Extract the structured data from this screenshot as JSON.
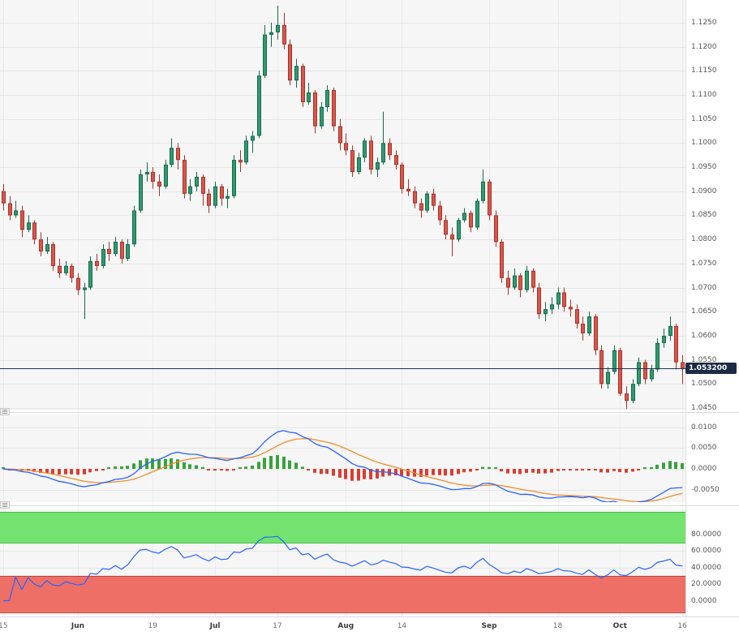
{
  "style": {
    "bg": "#ffffff",
    "plot_bg": "#f6f6f6",
    "grid": "#e6e6e6",
    "vgrid": "rgba(0,0,0,0.045)",
    "separator": "#d9d9d9",
    "axis_line": "#e0e0e0",
    "candle_up": "#2e9b70",
    "candle_up_border": "#17694a",
    "candle_down": "#d8564b",
    "candle_down_border": "#a83228",
    "price_line": "#22314f",
    "price_tag_bg": "#1c2b45",
    "price_tag_text": "#ffffff",
    "macd_line": "#2962ff",
    "macd_signal": "#ef8d2a",
    "hist_up": "#39a13c",
    "hist_down": "#dd3b30",
    "osc_line": "#2962ff",
    "band_overbought": "#73e26f",
    "band_overbought_border": "#44bf44",
    "band_oversold": "#ee6f66",
    "band_oversold_border": "#b8453c",
    "axis_text": "#555555"
  },
  "chart_data": {
    "type": "candlestick_multi_panel",
    "x_ticks": [
      {
        "index": 0,
        "label": "15",
        "bold": false
      },
      {
        "index": 12,
        "label": "Jun",
        "bold": true
      },
      {
        "index": 24,
        "label": "19",
        "bold": false
      },
      {
        "index": 34,
        "label": "Jul",
        "bold": true
      },
      {
        "index": 44,
        "label": "17",
        "bold": false
      },
      {
        "index": 55,
        "label": "Aug",
        "bold": true
      },
      {
        "index": 64,
        "label": "14",
        "bold": false
      },
      {
        "index": 78,
        "label": "Sep",
        "bold": true
      },
      {
        "index": 89,
        "label": "18",
        "bold": false
      },
      {
        "index": 99,
        "label": "Oct",
        "bold": true
      },
      {
        "index": 109,
        "label": "16",
        "bold": false
      }
    ],
    "panels": [
      {
        "name": "price",
        "type": "candlestick",
        "y_range": [
          1.0445,
          1.1297
        ],
        "y_tick_labels": [
          "1.1250",
          "1.1200",
          "1.1150",
          "1.1100",
          "1.1050",
          "1.1000",
          "1.0950",
          "1.0900",
          "1.0850",
          "1.0800",
          "1.0750",
          "1.0700",
          "1.0650",
          "1.0600",
          "1.0550",
          "1.0500",
          "1.0450"
        ],
        "last_price": 1.0532,
        "last_price_label": "1.053200",
        "candles": [
          [
            1.09,
            1.0915,
            1.086,
            1.0875
          ],
          [
            1.0875,
            1.089,
            1.084,
            1.085
          ],
          [
            1.085,
            1.088,
            1.0845,
            1.086
          ],
          [
            1.086,
            1.087,
            1.0805,
            1.082
          ],
          [
            1.082,
            1.085,
            1.0815,
            1.0835
          ],
          [
            1.0835,
            1.084,
            1.079,
            1.08
          ],
          [
            1.08,
            1.0815,
            1.0765,
            1.0775
          ],
          [
            1.0775,
            1.0805,
            1.077,
            1.079
          ],
          [
            1.079,
            1.0795,
            1.0735,
            1.0745
          ],
          [
            1.0745,
            1.076,
            1.072,
            1.073
          ],
          [
            1.073,
            1.0755,
            1.0725,
            1.0745
          ],
          [
            1.0745,
            1.075,
            1.071,
            1.072
          ],
          [
            1.072,
            1.073,
            1.0685,
            1.0695
          ],
          [
            1.0695,
            1.071,
            1.0635,
            1.07
          ],
          [
            1.07,
            1.0765,
            1.0695,
            1.0755
          ],
          [
            1.0755,
            1.077,
            1.0735,
            1.0745
          ],
          [
            1.0745,
            1.079,
            1.074,
            1.078
          ],
          [
            1.078,
            1.0795,
            1.0755,
            1.077
          ],
          [
            1.077,
            1.0805,
            1.0765,
            1.0795
          ],
          [
            1.0795,
            1.08,
            1.075,
            1.076
          ],
          [
            1.076,
            1.08,
            1.0755,
            1.079
          ],
          [
            1.079,
            1.087,
            1.0785,
            1.086
          ],
          [
            1.086,
            1.0945,
            1.0855,
            1.0935
          ],
          [
            1.0935,
            1.096,
            1.092,
            1.094
          ],
          [
            1.094,
            1.095,
            1.0905,
            1.092
          ],
          [
            1.092,
            1.0935,
            1.089,
            1.091
          ],
          [
            1.091,
            1.0965,
            1.0905,
            1.0955
          ],
          [
            1.0955,
            1.101,
            1.095,
            1.099
          ],
          [
            1.099,
            1.1,
            1.0945,
            1.0965
          ],
          [
            1.0965,
            1.0975,
            1.0885,
            1.0895
          ],
          [
            1.0895,
            1.0925,
            1.088,
            1.091
          ],
          [
            1.091,
            1.094,
            1.09,
            1.093
          ],
          [
            1.093,
            1.0935,
            1.087,
            1.0895
          ],
          [
            1.0895,
            1.0905,
            1.0855,
            1.087
          ],
          [
            1.087,
            1.092,
            1.0865,
            1.091
          ],
          [
            1.091,
            1.0915,
            1.087,
            1.0885
          ],
          [
            1.0885,
            1.0905,
            1.0865,
            1.089
          ],
          [
            1.089,
            1.0975,
            1.0885,
            1.0965
          ],
          [
            1.0965,
            1.0985,
            1.094,
            1.096
          ],
          [
            1.096,
            1.1015,
            1.0955,
            1.1005
          ],
          [
            1.1005,
            1.1025,
            1.098,
            1.1015
          ],
          [
            1.1015,
            1.115,
            1.101,
            1.114
          ],
          [
            1.114,
            1.1245,
            1.1135,
            1.1225
          ],
          [
            1.1225,
            1.125,
            1.12,
            1.123
          ],
          [
            1.123,
            1.1285,
            1.1215,
            1.1245
          ],
          [
            1.1245,
            1.127,
            1.1195,
            1.1205
          ],
          [
            1.1205,
            1.1215,
            1.112,
            1.113
          ],
          [
            1.113,
            1.1175,
            1.1115,
            1.116
          ],
          [
            1.116,
            1.1165,
            1.1075,
            1.1085
          ],
          [
            1.1085,
            1.1125,
            1.108,
            1.1105
          ],
          [
            1.1105,
            1.111,
            1.102,
            1.1035
          ],
          [
            1.1035,
            1.1085,
            1.103,
            1.1075
          ],
          [
            1.1075,
            1.112,
            1.1065,
            1.111
          ],
          [
            1.111,
            1.1115,
            1.1025,
            1.1035
          ],
          [
            1.1035,
            1.105,
            1.0985,
            1.1
          ],
          [
            1.1,
            1.102,
            1.0975,
            1.0985
          ],
          [
            1.0985,
            1.0995,
            1.093,
            1.094
          ],
          [
            1.094,
            1.098,
            1.0935,
            1.097
          ],
          [
            1.097,
            1.101,
            1.096,
            1.1005
          ],
          [
            1.1005,
            1.1015,
            1.0935,
            1.0945
          ],
          [
            1.0945,
            1.097,
            1.093,
            1.096
          ],
          [
            1.096,
            1.1065,
            1.0955,
            1.1
          ],
          [
            1.1,
            1.101,
            1.0965,
            1.0975
          ],
          [
            1.0975,
            1.0985,
            1.0945,
            1.0955
          ],
          [
            1.0955,
            1.096,
            1.0895,
            1.0905
          ],
          [
            1.0905,
            1.0925,
            1.089,
            1.09
          ],
          [
            1.09,
            1.091,
            1.0865,
            1.0875
          ],
          [
            1.0875,
            1.0885,
            1.0845,
            1.086
          ],
          [
            1.086,
            1.09,
            1.0855,
            1.0895
          ],
          [
            1.0895,
            1.0905,
            1.086,
            1.087
          ],
          [
            1.087,
            1.088,
            1.083,
            1.084
          ],
          [
            1.084,
            1.085,
            1.08,
            1.081
          ],
          [
            1.081,
            1.0825,
            1.0765,
            1.08
          ],
          [
            1.08,
            1.0845,
            1.0795,
            1.084
          ],
          [
            1.084,
            1.0865,
            1.0835,
            1.0855
          ],
          [
            1.0855,
            1.086,
            1.0815,
            1.0825
          ],
          [
            1.0825,
            1.0885,
            1.082,
            1.088
          ],
          [
            1.088,
            1.0945,
            1.0875,
            1.092
          ],
          [
            1.092,
            1.0925,
            1.084,
            1.085
          ],
          [
            1.085,
            1.086,
            1.0785,
            1.0795
          ],
          [
            1.0795,
            1.08,
            1.071,
            1.072
          ],
          [
            1.072,
            1.0735,
            1.0685,
            1.07
          ],
          [
            1.07,
            1.074,
            1.0695,
            1.0725
          ],
          [
            1.0725,
            1.073,
            1.068,
            1.0695
          ],
          [
            1.0695,
            1.0745,
            1.069,
            1.0735
          ],
          [
            1.0735,
            1.074,
            1.069,
            1.07
          ],
          [
            1.07,
            1.071,
            1.0635,
            1.0645
          ],
          [
            1.0645,
            1.067,
            1.063,
            1.0655
          ],
          [
            1.0655,
            1.068,
            1.0645,
            1.0665
          ],
          [
            1.0665,
            1.07,
            1.0655,
            1.069
          ],
          [
            1.069,
            1.07,
            1.065,
            1.066
          ],
          [
            1.066,
            1.0675,
            1.064,
            1.0655
          ],
          [
            1.0655,
            1.0665,
            1.0615,
            1.0625
          ],
          [
            1.0625,
            1.064,
            1.059,
            1.0605
          ],
          [
            1.0605,
            1.065,
            1.06,
            1.064
          ],
          [
            1.064,
            1.0645,
            1.056,
            1.057
          ],
          [
            1.057,
            1.058,
            1.049,
            1.05
          ],
          [
            1.05,
            1.0535,
            1.049,
            1.0525
          ],
          [
            1.0525,
            1.058,
            1.052,
            1.057
          ],
          [
            1.057,
            1.0575,
            1.0475,
            1.048
          ],
          [
            1.048,
            1.0495,
            1.0448,
            1.0465
          ],
          [
            1.0465,
            1.051,
            1.046,
            1.05
          ],
          [
            1.05,
            1.0555,
            1.0495,
            1.0545
          ],
          [
            1.0545,
            1.055,
            1.05,
            1.051
          ],
          [
            1.051,
            1.054,
            1.0505,
            1.053
          ],
          [
            1.053,
            1.0595,
            1.0525,
            1.0585
          ],
          [
            1.0585,
            1.0615,
            1.0575,
            1.06
          ],
          [
            1.06,
            1.064,
            1.059,
            1.062
          ],
          [
            1.062,
            1.0625,
            1.053,
            1.0545
          ],
          [
            1.0545,
            1.056,
            1.05,
            1.0532
          ]
        ]
      },
      {
        "name": "macd",
        "type": "macd",
        "params": {
          "fast": 12,
          "slow": 26,
          "signal": 9
        },
        "y_range": [
          -0.008,
          0.0131
        ],
        "y_tick_labels": [
          "0.0100",
          "0.0050",
          "0.0000",
          "-0.0050"
        ]
      },
      {
        "name": "oscillator",
        "type": "rsi",
        "params": {
          "length": 14
        },
        "y_range": [
          -18,
          111
        ],
        "bands": {
          "overbought": [
            70,
            107
          ],
          "oversold": [
            -14,
            30
          ]
        },
        "y_tick_labels": [
          "80.0000",
          "60.0000",
          "40.0000",
          "20.0000",
          "0.0000"
        ]
      }
    ]
  }
}
